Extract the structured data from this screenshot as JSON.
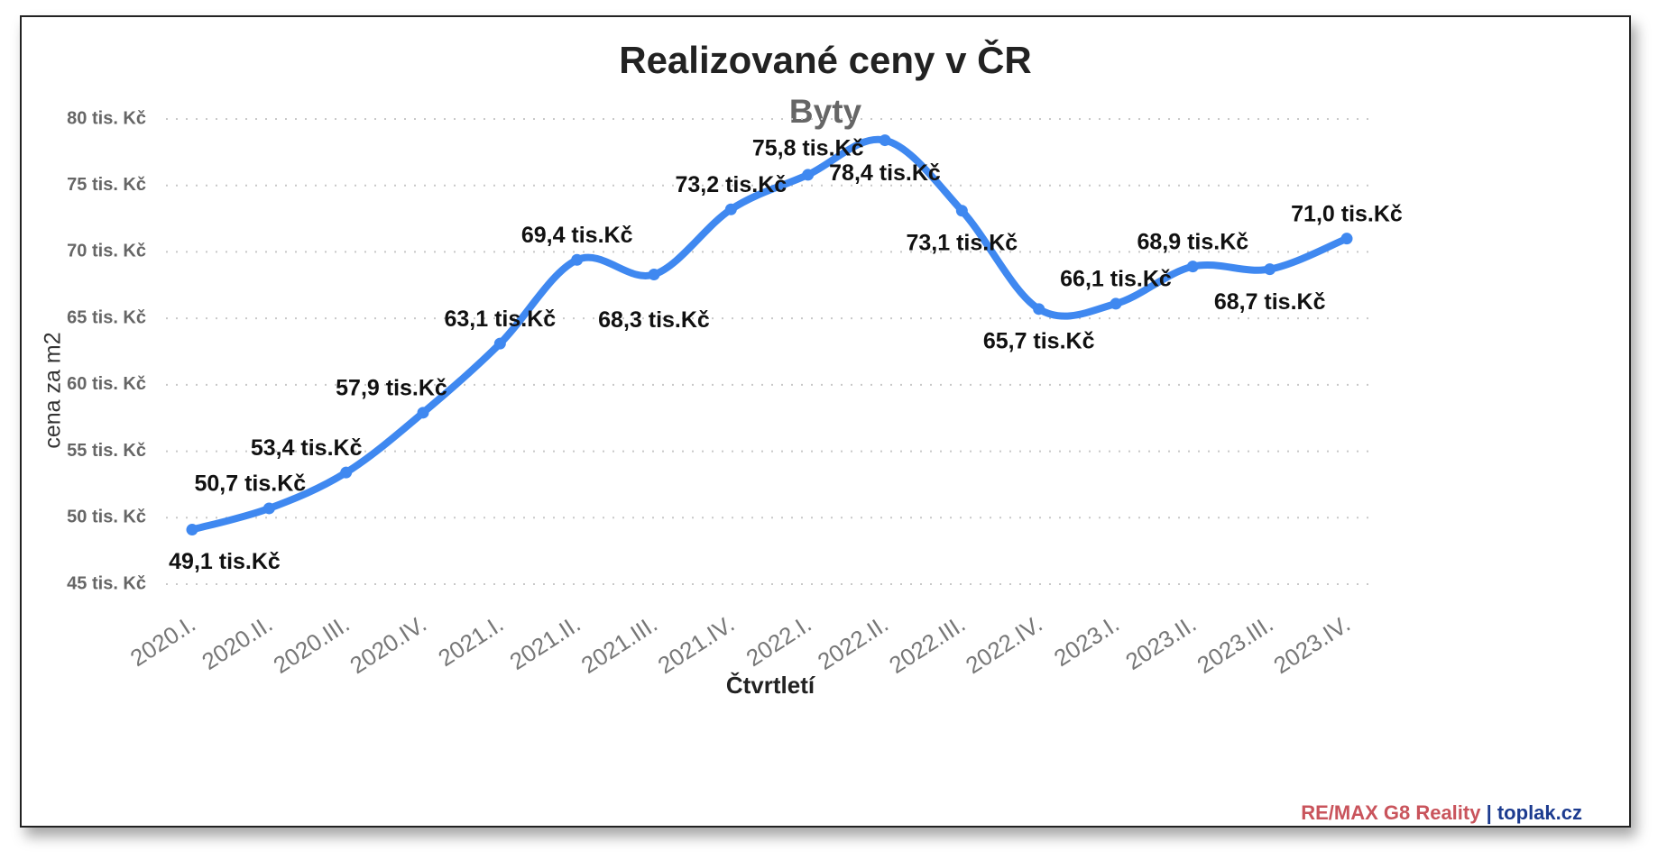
{
  "chart_data": {
    "type": "line",
    "title": "Realizované ceny v ČR",
    "subtitle": "Byty",
    "xlabel": "Čtvrtletí",
    "ylabel": "cena za m2",
    "categories": [
      "2020.I.",
      "2020.II.",
      "2020.III.",
      "2020.IV.",
      "2021.I.",
      "2021.II.",
      "2021.III.",
      "2021.IV.",
      "2022.I.",
      "2022.II.",
      "2022.III.",
      "2022.IV.",
      "2023.I.",
      "2023.II.",
      "2023.III.",
      "2023.IV."
    ],
    "series": [
      {
        "values": [
          49.1,
          50.7,
          53.4,
          57.9,
          63.1,
          69.4,
          68.3,
          73.2,
          75.8,
          78.4,
          73.1,
          65.7,
          66.1,
          68.9,
          68.7,
          71.0
        ],
        "labels": [
          "49,1 tis.Kč",
          "50,7 tis.Kč",
          "53,4 tis.Kč",
          "57,9 tis.Kč",
          "63,1 tis.Kč",
          "69,4 tis.Kč",
          "68,3 tis.Kč",
          "73,2 tis.Kč",
          "75,8 tis.Kč",
          "78,4 tis.Kč",
          "73,1 tis.Kč",
          "65,7 tis.Kč",
          "66,1 tis.Kč",
          "68,9 tis.Kč",
          "68,7 tis.Kč",
          "71,0 tis.Kč"
        ],
        "color": "#3f88f0"
      }
    ],
    "yticks": [
      45,
      50,
      55,
      60,
      65,
      70,
      75,
      80
    ],
    "ytick_labels": [
      "45 tis. Kč",
      "50 tis. Kč",
      "55 tis. Kč",
      "60 tis. Kč",
      "65 tis. Kč",
      "70 tis. Kč",
      "75 tis. Kč",
      "80 tis. Kč"
    ],
    "ylim": [
      45,
      80
    ],
    "grid": true,
    "grid_style": "dotted horizontal",
    "legend": "none"
  },
  "credit": {
    "brand": "RE/MAX G8 Reality",
    "separator": " | ",
    "site": "toplak.cz"
  }
}
